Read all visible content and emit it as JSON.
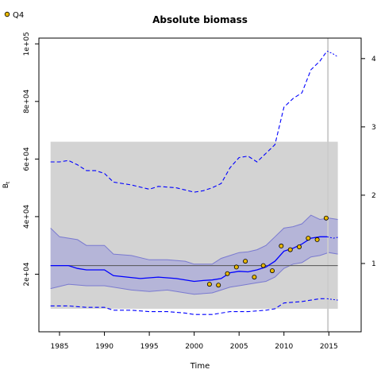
{
  "chart_data": {
    "type": "line",
    "title": "Absolute biomass",
    "xlabel": "Time",
    "ylabel": "B",
    "ylabel_subscript": "t",
    "xlim": [
      1982.7,
      2018.6
    ],
    "ylim": [
      0,
      102000
    ],
    "ylim_right": [
      0.0,
      4.3
    ],
    "x_ticks": [
      1985,
      1990,
      1995,
      2000,
      2005,
      2010,
      2015
    ],
    "y_ticks": [
      20000,
      40000,
      60000,
      80000,
      100000
    ],
    "y_tick_labels": [
      "2e+04",
      "4e+04",
      "6e+04",
      "8e+04",
      "1e+05"
    ],
    "y_ticks_right": [
      1,
      2,
      3,
      4
    ],
    "legend": {
      "position": "top-left",
      "entries": [
        "Q4"
      ]
    },
    "grid": false,
    "colors": {
      "estimate": "#0000ff",
      "ci_band": "#b5b5d8",
      "ci_band_edge": "#7a7ad0",
      "bmsy_band": "#d3d3d3",
      "bmsy_line": "#555555",
      "points": "#e8b800",
      "vline": "#cccccc"
    },
    "bmsy": {
      "value": 23000,
      "band": [
        8000,
        66000
      ]
    },
    "vline_x": 2014.9,
    "series": [
      {
        "name": "Q4",
        "style": "points",
        "x": [
          2001.7,
          2002.7,
          2003.7,
          2004.7,
          2005.7,
          2006.7,
          2007.7,
          2008.7,
          2009.7,
          2010.7,
          2011.7,
          2012.7,
          2013.7,
          2014.7
        ],
        "values": [
          16500,
          16200,
          20200,
          22500,
          24500,
          19000,
          23000,
          21200,
          29800,
          28500,
          29500,
          32500,
          32000,
          39500
        ]
      },
      {
        "style": "solid",
        "x": [
          1984,
          1986,
          1987,
          1988,
          1990,
          1991,
          1994,
          1996,
          1998,
          2000,
          2001,
          2002,
          2003,
          2004,
          2005,
          2006,
          2007,
          2008,
          2009,
          2010,
          2011,
          2012,
          2013,
          2014,
          2014.8
        ],
        "values": [
          23000,
          23000,
          22000,
          21500,
          21500,
          19500,
          18500,
          19000,
          18500,
          17500,
          17800,
          18000,
          18500,
          20500,
          21000,
          20800,
          21500,
          22500,
          24500,
          28000,
          29000,
          30500,
          32500,
          33000,
          33000
        ]
      },
      {
        "style": "dotted",
        "x": [
          2014.8,
          2015.5,
          2016
        ],
        "values": [
          33000,
          32500,
          32800
        ]
      },
      {
        "style": "band_upper",
        "x": [
          1984,
          1985,
          1987,
          1988,
          1990,
          1991,
          1993,
          1995,
          1997,
          1999,
          2000,
          2002,
          2003,
          2004,
          2005,
          2006,
          2007,
          2008,
          2009,
          2010,
          2011,
          2012,
          2013,
          2014,
          2015,
          2016
        ],
        "values": [
          36000,
          33000,
          32000,
          30000,
          30000,
          27000,
          26500,
          25000,
          25000,
          24500,
          23500,
          23500,
          25500,
          26500,
          27500,
          27800,
          28500,
          30000,
          33000,
          36000,
          36500,
          37500,
          40500,
          39000,
          39500,
          39000
        ]
      },
      {
        "style": "band_lower",
        "x": [
          1984,
          1986,
          1988,
          1990,
          1993,
          1995,
          1997,
          1999,
          2000,
          2002,
          2003,
          2004,
          2005,
          2006,
          2007,
          2008,
          2009,
          2010,
          2011,
          2012,
          2013,
          2014,
          2015,
          2016
        ],
        "values": [
          15000,
          16500,
          16000,
          16000,
          14500,
          14000,
          14500,
          13500,
          13000,
          13500,
          14500,
          15500,
          16000,
          16500,
          17000,
          17500,
          19000,
          22000,
          23500,
          24000,
          26000,
          26500,
          27500,
          27000
        ]
      },
      {
        "style": "dashed",
        "x": [
          1984,
          1985,
          1986,
          1987,
          1988,
          1989,
          1990,
          1991,
          1993,
          1995,
          1996,
          1998,
          2000,
          2001,
          2002,
          2003,
          2004,
          2005,
          2006,
          2007,
          2008,
          2009,
          2010,
          2011,
          2012,
          2013,
          2014,
          2014.8
        ],
        "values": [
          59000,
          59000,
          59500,
          58000,
          56000,
          56000,
          55000,
          52000,
          51000,
          49500,
          50500,
          50000,
          48500,
          49000,
          50000,
          51500,
          57000,
          60500,
          61000,
          59000,
          62000,
          65000,
          78000,
          81000,
          83000,
          91000,
          94000,
          97500
        ]
      },
      {
        "style": "dotted",
        "x": [
          2014.8,
          2015.5,
          2016
        ],
        "values": [
          97500,
          96500,
          95500
        ]
      },
      {
        "style": "dashed",
        "x": [
          1984,
          1986,
          1988,
          1990,
          1991,
          1993,
          1995,
          1997,
          1999,
          2000,
          2002,
          2004,
          2006,
          2008,
          2009,
          2010,
          2012,
          2013,
          2014,
          2014.8
        ],
        "values": [
          9000,
          9000,
          8500,
          8500,
          7500,
          7500,
          7000,
          7000,
          6500,
          6000,
          6000,
          7000,
          7000,
          7500,
          8000,
          10000,
          10500,
          11000,
          11500,
          11500
        ]
      },
      {
        "style": "dotted",
        "x": [
          2014.8,
          2015.5,
          2016
        ],
        "values": [
          11500,
          11200,
          11000
        ]
      }
    ]
  }
}
